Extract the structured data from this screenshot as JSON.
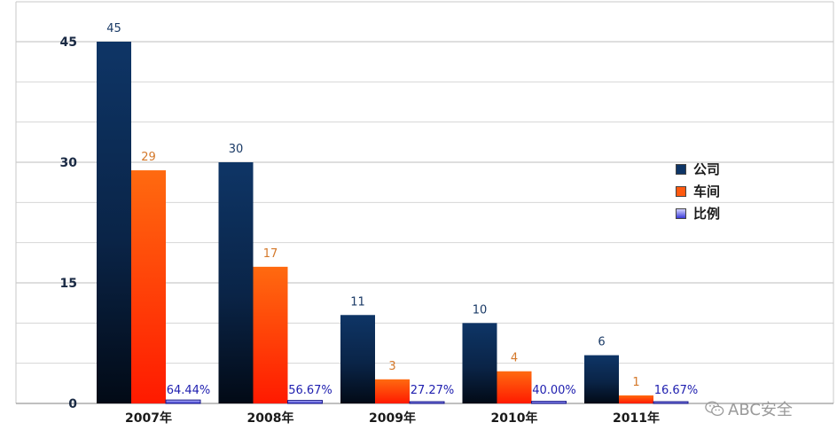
{
  "chart_data": {
    "type": "bar",
    "categories": [
      "2007年",
      "2008年",
      "2009年",
      "2010年",
      "2011年"
    ],
    "series": [
      {
        "name": "公司",
        "values": [
          45,
          30,
          11,
          10,
          6
        ],
        "labels": [
          "45",
          "30",
          "11",
          "10",
          "6"
        ],
        "color": "#0e3566",
        "label_color": "#1a3a66"
      },
      {
        "name": "车间",
        "values": [
          29,
          17,
          3,
          4,
          1
        ],
        "labels": [
          "29",
          "17",
          "3",
          "4",
          "1"
        ],
        "color": "#ff5a10",
        "label_color": "#d4782a"
      },
      {
        "name": "比例",
        "values": [
          0.6444,
          0.5667,
          0.2727,
          0.4,
          0.1667
        ],
        "labels": [
          "64.44%",
          "56.67%",
          "27.27%",
          "40.00%",
          "16.67%"
        ],
        "color": "#3f3fd6",
        "label_color": "#2020b0"
      }
    ],
    "yticks": [
      "0",
      "15",
      "30",
      "45"
    ],
    "ylim": [
      0,
      45
    ],
    "grid": true,
    "legend_position": "right"
  },
  "legend": {
    "items": [
      {
        "label": "公司",
        "color": "#0e3566"
      },
      {
        "label": "车间",
        "color": "#ff5a10"
      },
      {
        "label": "比例",
        "color": "#5a5aee"
      }
    ]
  },
  "watermark": {
    "text": "ABC安全"
  }
}
